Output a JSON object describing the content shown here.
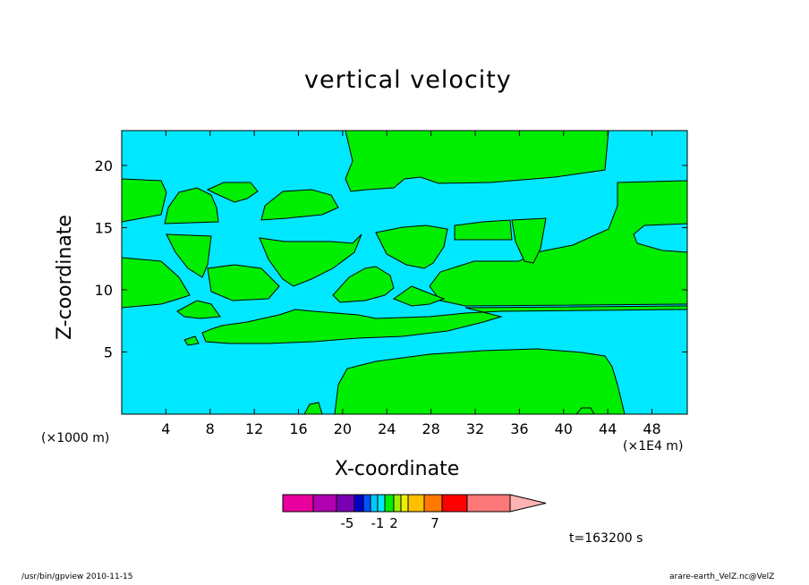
{
  "chart_data": {
    "type": "contour",
    "title": "vertical velocity",
    "xlabel": "X-coordinate",
    "ylabel": "Z-coordinate",
    "x_scale_label": "(×1000 m)",
    "x_factor_label": "(×1E4 m)",
    "xlim": [
      0,
      51.2
    ],
    "ylim": [
      0,
      22.8
    ],
    "x_ticks": [
      4,
      8,
      12,
      16,
      20,
      24,
      28,
      32,
      36,
      40,
      44,
      48
    ],
    "y_ticks": [
      5,
      10,
      15,
      20
    ],
    "grid": false,
    "background_color": "#00e8ff",
    "region_color": "#00ee00",
    "colorbar": {
      "colors": [
        "#e8009c",
        "#b000b0",
        "#7800b4",
        "#0000c8",
        "#0050ff",
        "#00c8ff",
        "#00e8ff",
        "#00ee00",
        "#a0ee00",
        "#eeee00",
        "#ffc000",
        "#ff7800",
        "#ff0000",
        "#ff7878",
        "#ffb4b4"
      ],
      "tick_labels": [
        "-5",
        "-1",
        "2",
        "7"
      ]
    },
    "time_label": "t=163200 s"
  },
  "footer": {
    "left": "/usr/bin/gpview  2010-11-15",
    "right": "arare-earth_VelZ.nc@VelZ"
  }
}
